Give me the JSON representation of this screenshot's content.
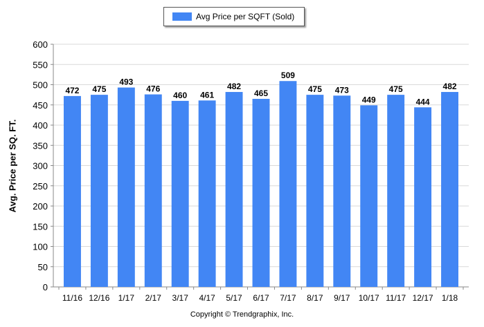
{
  "chart_data": {
    "type": "bar",
    "categories": [
      "11/16",
      "12/16",
      "1/17",
      "2/17",
      "3/17",
      "4/17",
      "5/17",
      "6/17",
      "7/17",
      "8/17",
      "9/17",
      "10/17",
      "11/17",
      "12/17",
      "1/18"
    ],
    "series": [
      {
        "name": "Avg Price per SQFT (Sold)",
        "values": [
          472,
          475,
          493,
          476,
          460,
          461,
          482,
          465,
          509,
          475,
          473,
          449,
          475,
          444,
          482
        ]
      }
    ],
    "ylabel": "Avg. Price per SQ. FT.",
    "xlabel": "",
    "ylim": [
      0,
      600
    ],
    "yticks": [
      0,
      50,
      100,
      150,
      200,
      250,
      300,
      350,
      400,
      450,
      500,
      550,
      600
    ],
    "grid": true,
    "legend_position": "top-center",
    "bar_color": "#4286f4",
    "data_labels": true
  },
  "footer": {
    "copyright": "Copyright © Trendgraphix, Inc."
  }
}
